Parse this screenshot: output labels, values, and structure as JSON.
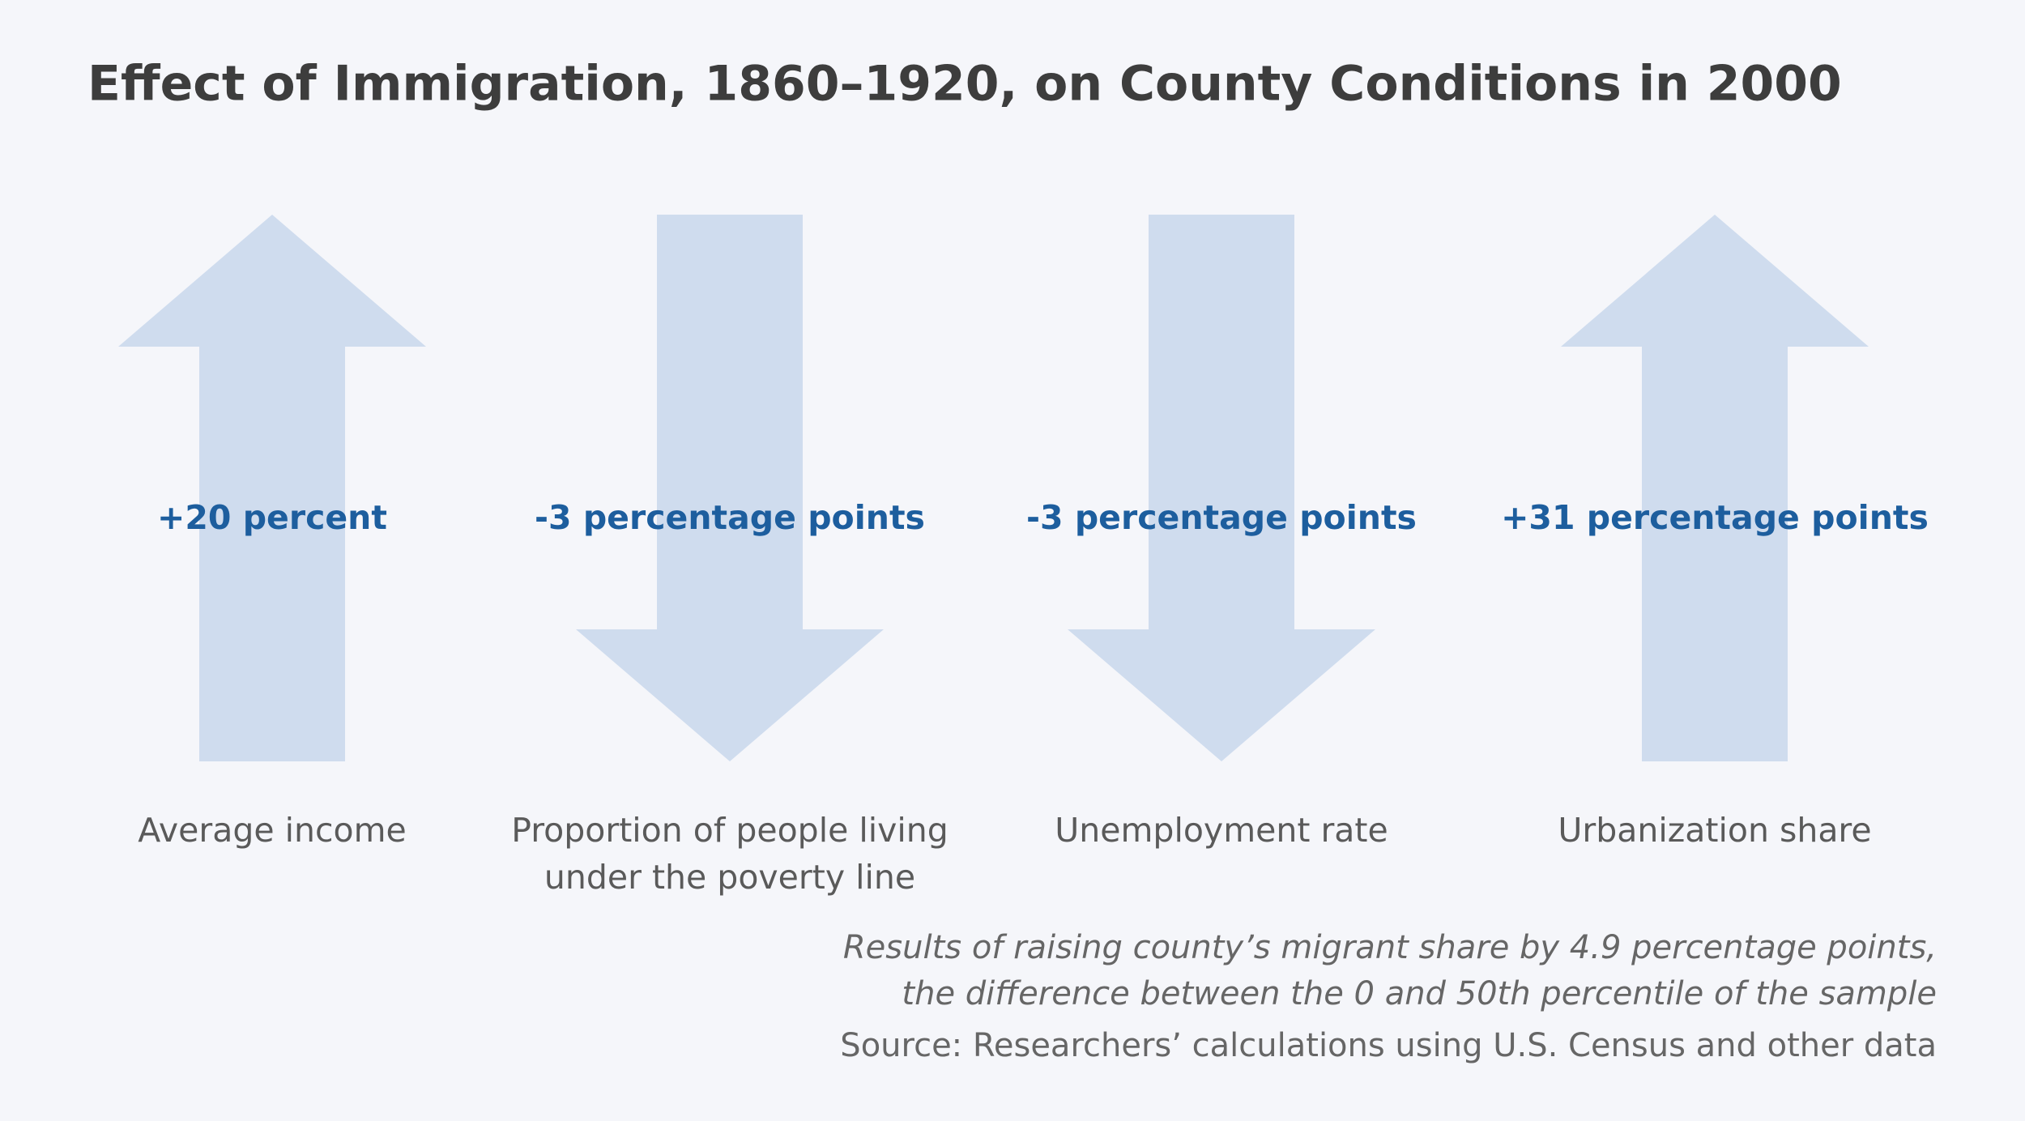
{
  "title": "Effect of Immigration, 1860–1920, on County Conditions in 2000",
  "items": [
    {
      "direction": "up",
      "effect": "+20 percent",
      "label": [
        "Average income"
      ]
    },
    {
      "direction": "down",
      "effect": "-3 percentage points",
      "label": [
        "Proportion of people living",
        "under the poverty line"
      ]
    },
    {
      "direction": "down",
      "effect": "-3 percentage points",
      "label": [
        "Unemployment rate"
      ]
    },
    {
      "direction": "up",
      "effect": "+31 percentage points",
      "label": [
        "Urbanization share"
      ]
    }
  ],
  "note": [
    "Results of raising county’s migrant share by 4.9 percentage points,",
    "the difference between the 0 and 50th percentile of the sample"
  ],
  "source": "Source: Researchers’ calculations using U.S. Census and other data",
  "arrow_color": "#cfdcee",
  "effect_color": "#1d5e9e"
}
